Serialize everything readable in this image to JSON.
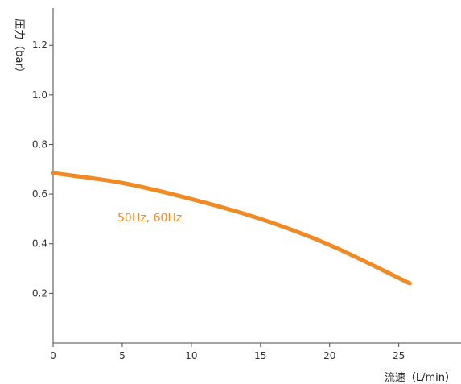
{
  "chart_data": {
    "type": "line",
    "xlabel": "流速（L/min）",
    "ylabel": "压力（bar）",
    "xlim": [
      0,
      29.5
    ],
    "ylim": [
      0,
      1.35
    ],
    "x_ticks": [
      0,
      5,
      10,
      15,
      20,
      25
    ],
    "x_tick_labels": [
      "0",
      "5",
      "10",
      "15",
      "20",
      "25"
    ],
    "y_ticks": [
      0.2,
      0.4,
      0.6,
      0.8,
      1.0,
      1.2
    ],
    "y_tick_labels": [
      "0.2",
      "0.4",
      "0.6",
      "0.8",
      "1.0",
      "1.2"
    ],
    "grid": false,
    "series": [
      {
        "name": "50Hz, 60Hz",
        "color": "#f08a24",
        "x": [
          0,
          5,
          10,
          15,
          20,
          25.8
        ],
        "y": [
          0.685,
          0.645,
          0.58,
          0.5,
          0.395,
          0.24
        ]
      }
    ]
  }
}
